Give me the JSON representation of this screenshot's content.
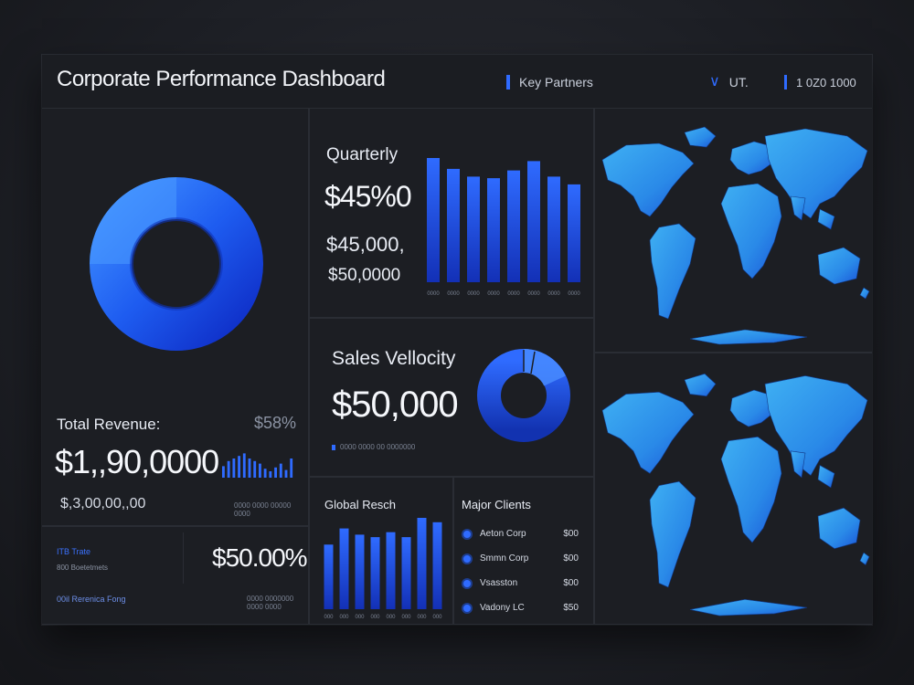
{
  "header": {
    "title": "Corporate Performance Dashboard",
    "key_partners": "Key Partners",
    "filter_label": "UT.",
    "range_label": "1 0Z0 1000"
  },
  "revenue": {
    "label": "Total Revenue:",
    "percent": "$58%",
    "value": "$1,,90,0000",
    "sub_value": "$,3,00,00,,00",
    "caption": "0000 0000 00000 0000"
  },
  "footer_left": {
    "row1": "ITB  Trate",
    "row2": "800  Boetetmets",
    "row3": "00il  Rerenica  Fong",
    "big_value": "$50.00%",
    "caption": "0000 0000000 0000 0000"
  },
  "quarterly": {
    "title": "Quarterly",
    "value1": "$45%0",
    "value2": "$45,000,",
    "value3": "$50,0000",
    "bar_labels": [
      "0000",
      "0000",
      "0000",
      "0000",
      "0000",
      "0000",
      "0000",
      "0000"
    ]
  },
  "velocity": {
    "title": "Sales Vellocity",
    "value": "$50,000",
    "caption": "0000 0000 00 0000000"
  },
  "global": {
    "title": "Global Resch",
    "bar_labels": [
      "000",
      "000",
      "000",
      "000",
      "000",
      "000",
      "000",
      "000"
    ]
  },
  "clients": {
    "title": "Major Clients",
    "items": [
      {
        "name": "Aeton Corp",
        "value": "$00"
      },
      {
        "name": "Smmn Corp",
        "value": "$00"
      },
      {
        "name": "Vsasston",
        "value": "$00"
      },
      {
        "name": "Vadony LC",
        "value": "$50"
      }
    ]
  },
  "colors": {
    "accent": "#2f6bff",
    "accent_light": "#3aa2f0",
    "accent_dark": "#1538c4",
    "panel": "#1c1e23",
    "border": "#2a2d34"
  },
  "chart_data": [
    {
      "type": "bar",
      "values": [
        80,
        73,
        68,
        67,
        72,
        78,
        68,
        63
      ],
      "ylim": [
        0,
        100
      ]
    },
    {
      "type": "bar",
      "values": [
        52,
        65,
        60,
        58,
        62,
        58,
        74,
        70
      ],
      "ylim": [
        0,
        100
      ]
    },
    {
      "type": "bar",
      "values": [
        18,
        26,
        30,
        34,
        38,
        30,
        26,
        22,
        14,
        10,
        16,
        22,
        12,
        30
      ],
      "ylim": [
        0,
        40
      ]
    }
  ]
}
